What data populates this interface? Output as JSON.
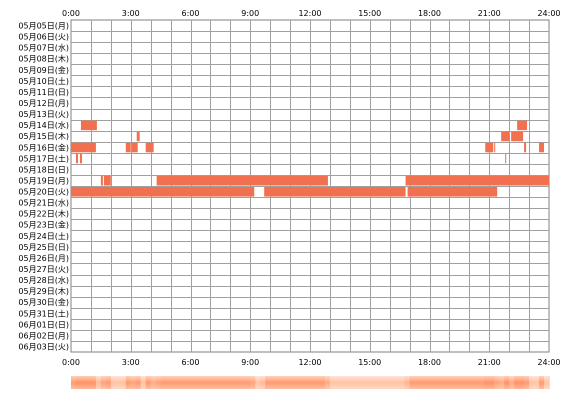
{
  "chart_data": {
    "type": "heatmap",
    "title": "",
    "xlabel": "",
    "ylabel": "",
    "x_ticks": [
      "0:00",
      "3:00",
      "6:00",
      "9:00",
      "12:00",
      "15:00",
      "18:00",
      "21:00",
      "24:00"
    ],
    "xlim": [
      0,
      24
    ],
    "rows": [
      "05月05日(月)",
      "05月06日(火)",
      "05月07日(水)",
      "05月08日(木)",
      "05月09日(金)",
      "05月10日(土)",
      "05月11日(日)",
      "05月12日(月)",
      "05月13日(火)",
      "05月14日(水)",
      "05月15日(木)",
      "05月16日(金)",
      "05月17日(土)",
      "05月18日(日)",
      "05月19日(月)",
      "05月20日(火)",
      "05月21日(水)",
      "05月22日(木)",
      "05月23日(金)",
      "05月24日(土)",
      "05月25日(日)",
      "05月26日(月)",
      "05月27日(火)",
      "05月28日(水)",
      "05月29日(木)",
      "05月30日(金)",
      "05月31日(土)",
      "06月01日(日)",
      "06月02日(月)",
      "06月03日(火)"
    ],
    "grid": true,
    "color": "#f07050",
    "summary_strip": true,
    "intervals": [
      {
        "row": "05月14日(水)",
        "start": 0.5,
        "end": 1.3
      },
      {
        "row": "05月14日(水)",
        "start": 22.4,
        "end": 22.9
      },
      {
        "row": "05月15日(木)",
        "start": 3.3,
        "end": 3.45
      },
      {
        "row": "05月15日(木)",
        "start": 21.6,
        "end": 22.0
      },
      {
        "row": "05月15日(木)",
        "start": 22.1,
        "end": 22.7
      },
      {
        "row": "05月16日(金)",
        "start": 0.0,
        "end": 1.25
      },
      {
        "row": "05月16日(金)",
        "start": 2.75,
        "end": 3.0
      },
      {
        "row": "05月16日(金)",
        "start": 3.05,
        "end": 3.35
      },
      {
        "row": "05月16日(金)",
        "start": 3.75,
        "end": 4.15
      },
      {
        "row": "05月16日(金)",
        "start": 20.8,
        "end": 21.2
      },
      {
        "row": "05月16日(金)",
        "start": 21.25,
        "end": 21.3
      },
      {
        "row": "05月16日(金)",
        "start": 22.75,
        "end": 22.85
      },
      {
        "row": "05月16日(金)",
        "start": 23.5,
        "end": 23.75
      },
      {
        "row": "05月17日(土)",
        "start": 0.25,
        "end": 0.35
      },
      {
        "row": "05月17日(土)",
        "start": 0.45,
        "end": 0.55
      },
      {
        "row": "05月17日(土)",
        "start": 21.8,
        "end": 21.85
      },
      {
        "row": "05月19日(月)",
        "start": 1.5,
        "end": 1.6
      },
      {
        "row": "05月19日(月)",
        "start": 1.65,
        "end": 2.0
      },
      {
        "row": "05月19日(月)",
        "start": 4.3,
        "end": 12.9
      },
      {
        "row": "05月19日(月)",
        "start": 16.8,
        "end": 24.0
      },
      {
        "row": "05月20日(火)",
        "start": 0.0,
        "end": 9.2
      },
      {
        "row": "05月20日(火)",
        "start": 9.7,
        "end": 16.8
      },
      {
        "row": "05月20日(火)",
        "start": 16.9,
        "end": 21.4
      }
    ]
  }
}
